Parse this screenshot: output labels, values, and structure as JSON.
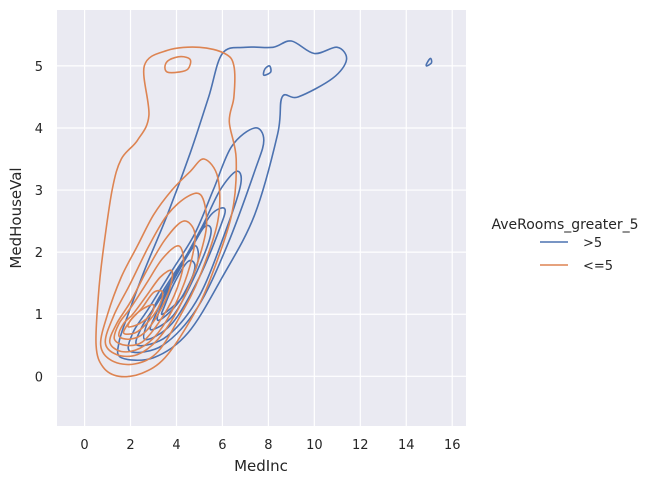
{
  "chart_data": {
    "type": "kde_contour",
    "title": "",
    "xlabel": "MedInc",
    "ylabel": "MedHouseVal",
    "xlim": [
      -1.2,
      16.6
    ],
    "ylim": [
      -0.8,
      5.9
    ],
    "xticks": [
      0,
      2,
      4,
      6,
      8,
      10,
      12,
      14,
      16
    ],
    "yticks": [
      0,
      1,
      2,
      3,
      4,
      5
    ],
    "grid": true,
    "legend": {
      "title": "AveRooms_greater_5",
      "placement": "right",
      "entries": [
        {
          "label": ">5",
          "color": "#4c72b0"
        },
        {
          "label": "<=5",
          "color": "#dd8452"
        }
      ]
    },
    "series": [
      {
        "name": ">5",
        "color": "#4c72b0",
        "contours": [
          [
            [
              1.6,
              0.3
            ],
            [
              3.0,
              0.3
            ],
            [
              4.5,
              0.7
            ],
            [
              6.0,
              1.6
            ],
            [
              7.4,
              2.6
            ],
            [
              8.4,
              3.9
            ],
            [
              8.6,
              4.5
            ],
            [
              9.3,
              4.5
            ],
            [
              10.8,
              4.8
            ],
            [
              11.4,
              5.1
            ],
            [
              11.0,
              5.3
            ],
            [
              10.0,
              5.2
            ],
            [
              9.0,
              5.4
            ],
            [
              8.2,
              5.3
            ],
            [
              7.0,
              5.3
            ],
            [
              6.0,
              5.2
            ],
            [
              5.4,
              4.5
            ],
            [
              4.6,
              3.6
            ],
            [
              3.6,
              2.6
            ],
            [
              2.6,
              1.7
            ],
            [
              1.9,
              1.0
            ],
            [
              1.5,
              0.55
            ]
          ],
          [
            [
              2.0,
              0.4
            ],
            [
              3.4,
              0.5
            ],
            [
              4.9,
              1.1
            ],
            [
              6.2,
              2.1
            ],
            [
              7.4,
              3.3
            ],
            [
              7.8,
              3.8
            ],
            [
              7.4,
              4.0
            ],
            [
              6.4,
              3.7
            ],
            [
              5.6,
              3.0
            ],
            [
              4.8,
              2.3
            ],
            [
              3.8,
              1.7
            ],
            [
              2.8,
              1.1
            ],
            [
              2.1,
              0.7
            ]
          ],
          [
            [
              2.3,
              0.5
            ],
            [
              3.6,
              0.65
            ],
            [
              5.0,
              1.3
            ],
            [
              6.2,
              2.4
            ],
            [
              6.8,
              3.1
            ],
            [
              6.6,
              3.3
            ],
            [
              5.9,
              3.0
            ],
            [
              5.1,
              2.4
            ],
            [
              4.2,
              1.8
            ],
            [
              3.2,
              1.2
            ],
            [
              2.5,
              0.8
            ]
          ],
          [
            [
              2.6,
              0.6
            ],
            [
              3.8,
              0.85
            ],
            [
              5.0,
              1.6
            ],
            [
              5.9,
              2.4
            ],
            [
              6.1,
              2.7
            ],
            [
              5.5,
              2.6
            ],
            [
              4.7,
              2.1
            ],
            [
              3.8,
              1.6
            ],
            [
              3.0,
              1.1
            ]
          ],
          [
            [
              2.9,
              0.75
            ],
            [
              3.9,
              1.0
            ],
            [
              4.9,
              1.7
            ],
            [
              5.5,
              2.3
            ],
            [
              5.2,
              2.4
            ],
            [
              4.4,
              1.9
            ],
            [
              3.6,
              1.4
            ],
            [
              3.1,
              1.0
            ]
          ],
          [
            [
              3.2,
              0.9
            ],
            [
              4.1,
              1.2
            ],
            [
              4.9,
              1.8
            ],
            [
              4.8,
              2.1
            ],
            [
              4.1,
              1.7
            ],
            [
              3.4,
              1.2
            ]
          ],
          [
            [
              3.4,
              1.0
            ],
            [
              4.3,
              1.3
            ],
            [
              4.8,
              1.75
            ],
            [
              4.5,
              1.85
            ],
            [
              3.9,
              1.5
            ],
            [
              3.5,
              1.15
            ]
          ],
          [
            [
              7.8,
              4.85
            ],
            [
              8.1,
              4.9
            ],
            [
              8.05,
              5.0
            ],
            [
              7.85,
              4.95
            ]
          ],
          [
            [
              14.9,
              5.0
            ],
            [
              15.1,
              5.05
            ],
            [
              15.05,
              5.12
            ],
            [
              14.88,
              5.03
            ]
          ]
        ]
      },
      {
        "name": "<=5",
        "color": "#dd8452",
        "contours": [
          [
            [
              0.5,
              0.5
            ],
            [
              0.8,
              0.15
            ],
            [
              1.5,
              0.0
            ],
            [
              2.5,
              0.05
            ],
            [
              3.5,
              0.3
            ],
            [
              4.6,
              0.9
            ],
            [
              5.4,
              1.5
            ],
            [
              6.4,
              2.6
            ],
            [
              6.6,
              3.5
            ],
            [
              6.3,
              4.1
            ],
            [
              6.5,
              4.5
            ],
            [
              6.5,
              5.0
            ],
            [
              6.1,
              5.2
            ],
            [
              5.0,
              5.3
            ],
            [
              3.6,
              5.25
            ],
            [
              2.6,
              5.0
            ],
            [
              2.8,
              4.2
            ],
            [
              2.3,
              3.8
            ],
            [
              1.6,
              3.5
            ],
            [
              1.2,
              3.0
            ],
            [
              0.8,
              2.0
            ],
            [
              0.6,
              1.3
            ]
          ],
          [
            [
              0.7,
              0.5
            ],
            [
              1.2,
              0.25
            ],
            [
              2.2,
              0.2
            ],
            [
              3.2,
              0.4
            ],
            [
              4.2,
              1.0
            ],
            [
              5.0,
              1.6
            ],
            [
              5.8,
              2.5
            ],
            [
              5.8,
              3.2
            ],
            [
              5.2,
              3.5
            ],
            [
              4.6,
              3.3
            ],
            [
              3.8,
              3.0
            ],
            [
              3.0,
              2.6
            ],
            [
              2.3,
              2.1
            ],
            [
              1.6,
              1.6
            ],
            [
              1.0,
              1.0
            ]
          ],
          [
            [
              0.9,
              0.55
            ],
            [
              1.4,
              0.35
            ],
            [
              2.3,
              0.35
            ],
            [
              3.2,
              0.6
            ],
            [
              4.1,
              1.1
            ],
            [
              4.8,
              1.7
            ],
            [
              5.3,
              2.4
            ],
            [
              5.1,
              2.9
            ],
            [
              4.5,
              2.9
            ],
            [
              3.6,
              2.6
            ],
            [
              2.8,
              2.1
            ],
            [
              2.0,
              1.5
            ],
            [
              1.3,
              1.0
            ]
          ],
          [
            [
              1.1,
              0.55
            ],
            [
              1.6,
              0.4
            ],
            [
              2.4,
              0.45
            ],
            [
              3.2,
              0.7
            ],
            [
              4.0,
              1.2
            ],
            [
              4.6,
              1.8
            ],
            [
              4.8,
              2.3
            ],
            [
              4.3,
              2.5
            ],
            [
              3.5,
              2.2
            ],
            [
              2.7,
              1.7
            ],
            [
              2.0,
              1.2
            ],
            [
              1.4,
              0.85
            ]
          ],
          [
            [
              1.3,
              0.6
            ],
            [
              1.8,
              0.5
            ],
            [
              2.5,
              0.55
            ],
            [
              3.2,
              0.85
            ],
            [
              3.9,
              1.3
            ],
            [
              4.3,
              1.8
            ],
            [
              4.1,
              2.1
            ],
            [
              3.4,
              1.9
            ],
            [
              2.7,
              1.5
            ],
            [
              2.0,
              1.1
            ],
            [
              1.5,
              0.85
            ]
          ],
          [
            [
              1.5,
              0.65
            ],
            [
              2.0,
              0.6
            ],
            [
              2.6,
              0.7
            ],
            [
              3.2,
              1.0
            ],
            [
              3.7,
              1.4
            ],
            [
              3.8,
              1.7
            ],
            [
              3.3,
              1.6
            ],
            [
              2.7,
              1.3
            ],
            [
              2.1,
              1.0
            ],
            [
              1.7,
              0.85
            ]
          ],
          [
            [
              1.7,
              0.7
            ],
            [
              2.2,
              0.7
            ],
            [
              2.7,
              0.85
            ],
            [
              3.2,
              1.1
            ],
            [
              3.4,
              1.35
            ],
            [
              3.0,
              1.35
            ],
            [
              2.5,
              1.1
            ],
            [
              2.0,
              0.9
            ]
          ],
          [
            [
              1.9,
              0.8
            ],
            [
              2.4,
              0.85
            ],
            [
              2.9,
              1.0
            ],
            [
              3.0,
              1.15
            ],
            [
              2.6,
              1.1
            ],
            [
              2.1,
              0.95
            ]
          ],
          [
            [
              3.6,
              4.9
            ],
            [
              4.1,
              4.9
            ],
            [
              4.5,
              4.95
            ],
            [
              4.6,
              5.1
            ],
            [
              4.2,
              5.15
            ],
            [
              3.7,
              5.1
            ],
            [
              3.5,
              5.0
            ]
          ]
        ]
      }
    ]
  }
}
